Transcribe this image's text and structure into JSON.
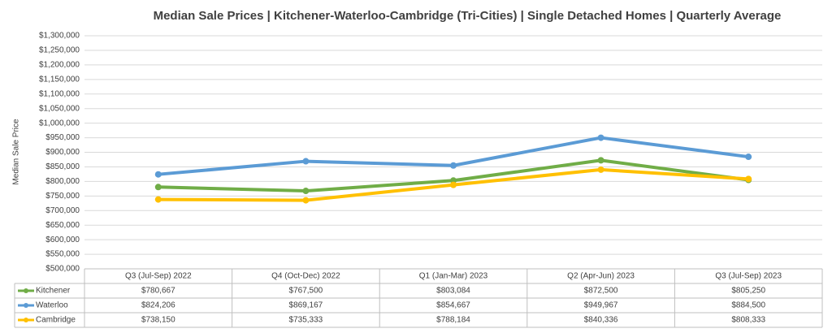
{
  "chart_data": {
    "type": "line",
    "title": "Median Sale Prices | Kitchener-Waterloo-Cambridge (Tri-Cities) | Single Detached Homes | Quarterly Average",
    "y_label": "Median Sale Price",
    "categories": [
      "Q3 (Jul-Sep) 2022",
      "Q4 (Oct-Dec) 2022",
      "Q1 (Jan-Mar) 2023",
      "Q2 (Apr-Jun) 2023",
      "Q3 (Jul-Sep) 2023"
    ],
    "series": [
      {
        "name": "Kitchener",
        "color": "#70ad47",
        "values": [
          780667,
          767500,
          803084,
          872500,
          805250
        ],
        "value_labels": [
          "$780,667",
          "$767,500",
          "$803,084",
          "$872,500",
          "$805,250"
        ]
      },
      {
        "name": "Waterloo",
        "color": "#5b9bd5",
        "values": [
          824206,
          869167,
          854667,
          949967,
          884500
        ],
        "value_labels": [
          "$824,206",
          "$869,167",
          "$854,667",
          "$949,967",
          "$884,500"
        ]
      },
      {
        "name": "Cambridge",
        "color": "#ffc000",
        "values": [
          738150,
          735333,
          788184,
          840336,
          808333
        ],
        "value_labels": [
          "$738,150",
          "$735,333",
          "$788,184",
          "$840,336",
          "$808,333"
        ]
      }
    ],
    "ylim": [
      500000,
      1300000
    ],
    "yticks": [
      {
        "value": 500000,
        "label": "$500,000"
      },
      {
        "value": 550000,
        "label": "$550,000"
      },
      {
        "value": 600000,
        "label": "$600,000"
      },
      {
        "value": 650000,
        "label": "$650,000"
      },
      {
        "value": 700000,
        "label": "$700,000"
      },
      {
        "value": 750000,
        "label": "$750,000"
      },
      {
        "value": 800000,
        "label": "$800,000"
      },
      {
        "value": 850000,
        "label": "$850,000"
      },
      {
        "value": 900000,
        "label": "$900,000"
      },
      {
        "value": 950000,
        "label": "$950,000"
      },
      {
        "value": 1000000,
        "label": "$1,000,000"
      },
      {
        "value": 1050000,
        "label": "$1,050,000"
      },
      {
        "value": 1100000,
        "label": "$1,100,000"
      },
      {
        "value": 1150000,
        "label": "$1,150,000"
      },
      {
        "value": 1200000,
        "label": "$1,200,000"
      },
      {
        "value": 1250000,
        "label": "$1,250,000"
      },
      {
        "value": 1300000,
        "label": "$1,300,000"
      }
    ],
    "grid": true
  }
}
